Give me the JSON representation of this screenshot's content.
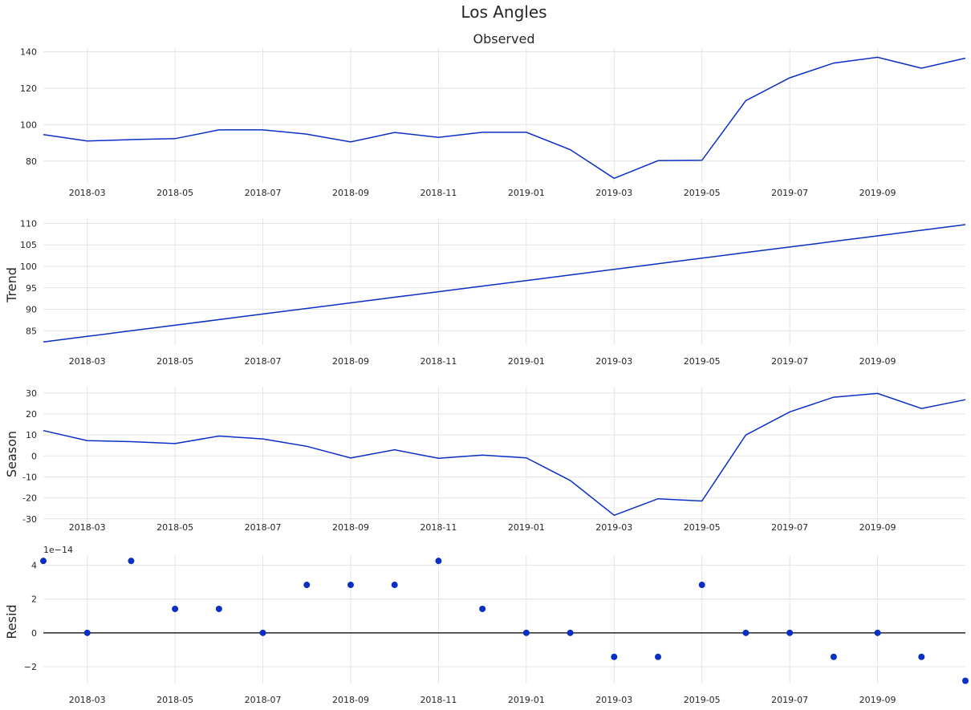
{
  "figure": {
    "title": "Los Angles",
    "line_color": "#0a2fc4",
    "zero_line_color": "#262626"
  },
  "chart_data": [
    {
      "type": "line",
      "id": "observed",
      "title": "Observed",
      "ylabel": "",
      "x": [
        "2018-02",
        "2018-03",
        "2018-04",
        "2018-05",
        "2018-06",
        "2018-07",
        "2018-08",
        "2018-09",
        "2018-10",
        "2018-11",
        "2018-12",
        "2019-01",
        "2019-02",
        "2019-03",
        "2019-04",
        "2019-05",
        "2019-06",
        "2019-07",
        "2019-08",
        "2019-09",
        "2019-10",
        "2019-11"
      ],
      "series": [
        {
          "values": [
            94.5,
            91.0,
            91.8,
            92.3,
            97.1,
            97.1,
            94.8,
            90.5,
            95.7,
            93.0,
            95.8,
            95.8,
            86.3,
            70.5,
            80.2,
            80.4,
            113.2,
            125.7,
            133.8,
            137.0,
            131.0,
            136.5
          ]
        }
      ],
      "ylim": [
        68,
        142
      ],
      "yticks": [
        80,
        100,
        120,
        140
      ],
      "xtick_labels": [
        "2018-03",
        "2018-05",
        "2018-07",
        "2018-09",
        "2018-11",
        "2019-01",
        "2019-03",
        "2019-05",
        "2019-07",
        "2019-09"
      ],
      "grid": true
    },
    {
      "type": "line",
      "id": "trend",
      "title": "",
      "ylabel": "Trend",
      "x": [
        "2018-02",
        "2018-03",
        "2018-04",
        "2018-05",
        "2018-06",
        "2018-07",
        "2018-08",
        "2018-09",
        "2018-10",
        "2018-11",
        "2018-12",
        "2019-01",
        "2019-02",
        "2019-03",
        "2019-04",
        "2019-05",
        "2019-06",
        "2019-07",
        "2019-08",
        "2019-09",
        "2019-10",
        "2019-11"
      ],
      "series": [
        {
          "values": [
            82.4,
            83.7,
            85.0,
            86.3,
            87.6,
            88.9,
            90.2,
            91.5,
            92.8,
            94.1,
            95.4,
            96.7,
            98.0,
            99.3,
            100.6,
            101.9,
            103.2,
            104.5,
            105.8,
            107.1,
            108.4,
            109.7
          ]
        }
      ],
      "ylim": [
        81.7,
        111.2
      ],
      "yticks": [
        85,
        90,
        95,
        100,
        105,
        110
      ],
      "xtick_labels": [
        "2018-03",
        "2018-05",
        "2018-07",
        "2018-09",
        "2018-11",
        "2019-01",
        "2019-03",
        "2019-05",
        "2019-07",
        "2019-09"
      ],
      "grid": true
    },
    {
      "type": "line",
      "id": "season",
      "title": "",
      "ylabel": "Season",
      "x": [
        "2018-02",
        "2018-03",
        "2018-04",
        "2018-05",
        "2018-06",
        "2018-07",
        "2018-08",
        "2018-09",
        "2018-10",
        "2018-11",
        "2018-12",
        "2019-01",
        "2019-02",
        "2019-03",
        "2019-04",
        "2019-05",
        "2019-06",
        "2019-07",
        "2019-08",
        "2019-09",
        "2019-10",
        "2019-11"
      ],
      "series": [
        {
          "values": [
            12.1,
            7.3,
            6.8,
            5.9,
            9.5,
            8.1,
            4.6,
            -1.0,
            2.9,
            -1.1,
            0.4,
            -0.9,
            -11.7,
            -28.3,
            -20.4,
            -21.5,
            10.0,
            21.0,
            28.0,
            29.8,
            22.6,
            26.8
          ]
        }
      ],
      "ylim": [
        -32,
        33
      ],
      "yticks": [
        -30,
        -20,
        -10,
        0,
        10,
        20,
        30
      ],
      "xtick_labels": [
        "2018-03",
        "2018-05",
        "2018-07",
        "2018-09",
        "2018-11",
        "2019-01",
        "2019-03",
        "2019-05",
        "2019-07",
        "2019-09"
      ],
      "grid": true
    },
    {
      "type": "scatter",
      "id": "resid",
      "title": "",
      "ylabel": "Resid",
      "offset_text": "1e−14",
      "x": [
        "2018-02",
        "2018-03",
        "2018-04",
        "2018-05",
        "2018-06",
        "2018-07",
        "2018-08",
        "2018-09",
        "2018-10",
        "2018-11",
        "2018-12",
        "2019-01",
        "2019-02",
        "2019-03",
        "2019-04",
        "2019-05",
        "2019-06",
        "2019-07",
        "2019-08",
        "2019-09",
        "2019-10",
        "2019-11"
      ],
      "series": [
        {
          "values": [
            4.26,
            0.0,
            4.26,
            1.42,
            1.42,
            0.0,
            2.84,
            2.84,
            2.84,
            4.26,
            1.42,
            0.0,
            0.0,
            -1.42,
            -1.42,
            2.84,
            0.0,
            0.0,
            -1.42,
            0.0,
            -1.42,
            -2.84
          ]
        }
      ],
      "ylim": [
        -3.0,
        4.6
      ],
      "yticks": [
        -2,
        0,
        2,
        4
      ],
      "ytick_labels": [
        "−2",
        "0",
        "2",
        "4"
      ],
      "xtick_labels": [
        "2018-03",
        "2018-05",
        "2018-07",
        "2018-09",
        "2018-11",
        "2019-01",
        "2019-03",
        "2019-05",
        "2019-07",
        "2019-09"
      ],
      "grid": true,
      "zero_line": true
    }
  ]
}
